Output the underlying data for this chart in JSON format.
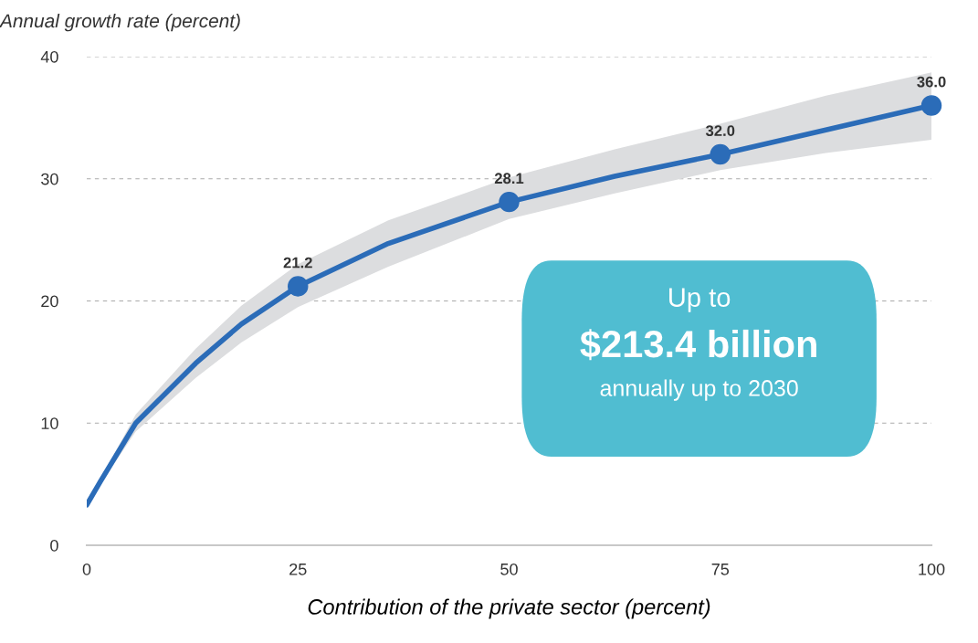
{
  "chart_data": {
    "type": "line",
    "ylabel": "Annual growth rate (percent)",
    "xlabel": "Contribution of the private sector (percent)",
    "xlim": [
      0,
      100
    ],
    "xticks": [
      0,
      25,
      50,
      75,
      100
    ],
    "ylim": [
      0,
      40
    ],
    "yticks": [
      0,
      10,
      20,
      30,
      40
    ],
    "grid": "y",
    "series": [
      {
        "color": "#2b6cb8",
        "marker": "none",
        "x": [
          0,
          1.6,
          5.8,
          12.9,
          18.3,
          25,
          35.7,
          50,
          62.5,
          75,
          87.5,
          100
        ],
        "values": [
          3.3,
          5.2,
          10.0,
          14.9,
          18.1,
          21.2,
          24.7,
          28.1,
          30.2,
          32.0,
          34.0,
          36.0
        ],
        "lower": [
          3.3,
          5.0,
          9.3,
          13.7,
          16.6,
          19.5,
          22.8,
          26.7,
          28.8,
          30.7,
          32.1,
          33.2
        ],
        "upper": [
          3.3,
          5.4,
          10.7,
          16.1,
          19.6,
          23.0,
          26.6,
          30.1,
          32.4,
          34.5,
          36.8,
          38.7
        ]
      },
      {
        "type": "scatter",
        "color": "#2b6cb8",
        "marker": "circle",
        "x": [
          25,
          50,
          75,
          100
        ],
        "values": [
          21.2,
          28.1,
          32.0,
          36.0
        ],
        "value_labels": [
          "21.2",
          "28.1",
          "32.0",
          "36.0"
        ]
      }
    ],
    "annotations": [
      "Up to",
      "$213.4 billion",
      "annually up to 2030"
    ]
  }
}
